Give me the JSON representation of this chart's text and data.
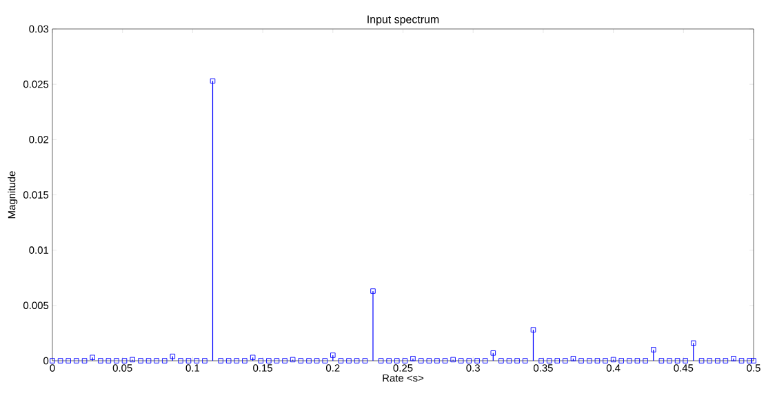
{
  "chart_data": {
    "type": "lollipop",
    "title": "Input spectrum",
    "xlabel": "Rate <s>",
    "ylabel": "Magnitude",
    "x": [
      0,
      0.0057,
      0.0114,
      0.0171,
      0.0229,
      0.0286,
      0.0343,
      0.04,
      0.0457,
      0.0514,
      0.0571,
      0.0629,
      0.0686,
      0.0743,
      0.08,
      0.0857,
      0.0914,
      0.0971,
      0.1029,
      0.1086,
      0.1143,
      0.12,
      0.1257,
      0.1314,
      0.1371,
      0.1429,
      0.1486,
      0.1543,
      0.16,
      0.1657,
      0.1714,
      0.1771,
      0.1829,
      0.1886,
      0.1943,
      0.2,
      0.2057,
      0.2114,
      0.2171,
      0.2229,
      0.2286,
      0.2343,
      0.24,
      0.2457,
      0.2514,
      0.2571,
      0.2629,
      0.2686,
      0.2743,
      0.28,
      0.2857,
      0.2914,
      0.2971,
      0.3029,
      0.3086,
      0.3143,
      0.32,
      0.3257,
      0.3314,
      0.3371,
      0.3429,
      0.3486,
      0.3543,
      0.36,
      0.3657,
      0.3714,
      0.3771,
      0.3829,
      0.3886,
      0.3943,
      0.4,
      0.4057,
      0.4114,
      0.4171,
      0.4229,
      0.4286,
      0.4343,
      0.44,
      0.4457,
      0.4514,
      0.4571,
      0.4629,
      0.4686,
      0.4743,
      0.48,
      0.4857,
      0.4914,
      0.4971,
      0.5
    ],
    "values": [
      0,
      0,
      0,
      0,
      0,
      0.0003,
      0,
      0,
      0,
      0,
      0.0001,
      0,
      0,
      0,
      0,
      0.0004,
      0,
      0,
      0,
      0,
      0.0253,
      0,
      0,
      0,
      0,
      0.0003,
      0,
      0,
      0,
      0,
      0.0001,
      0,
      0,
      0,
      0,
      0.0005,
      0,
      0,
      0,
      0,
      0.0063,
      0,
      0,
      0,
      0,
      0.0002,
      0,
      0,
      0,
      0,
      0.0001,
      0,
      0,
      0,
      0,
      0.0007,
      0,
      0,
      0,
      0,
      0.0028,
      0,
      0,
      0,
      0,
      0.0002,
      0,
      0,
      0,
      0,
      0.0001,
      0,
      0,
      0,
      0,
      0.001,
      0,
      0,
      0,
      0,
      0.0016,
      0,
      0,
      0,
      0,
      0.0002,
      0,
      0,
      0
    ],
    "color": "#0000ff",
    "marker": "square",
    "xlim": [
      0,
      0.5
    ],
    "ylim": [
      0,
      0.03
    ],
    "xticks": [
      0,
      0.05,
      0.1,
      0.15,
      0.2,
      0.25,
      0.3,
      0.35,
      0.4,
      0.45,
      0.5
    ],
    "yticks": [
      0,
      0.005,
      0.01,
      0.015,
      0.02,
      0.025,
      0.03
    ]
  }
}
